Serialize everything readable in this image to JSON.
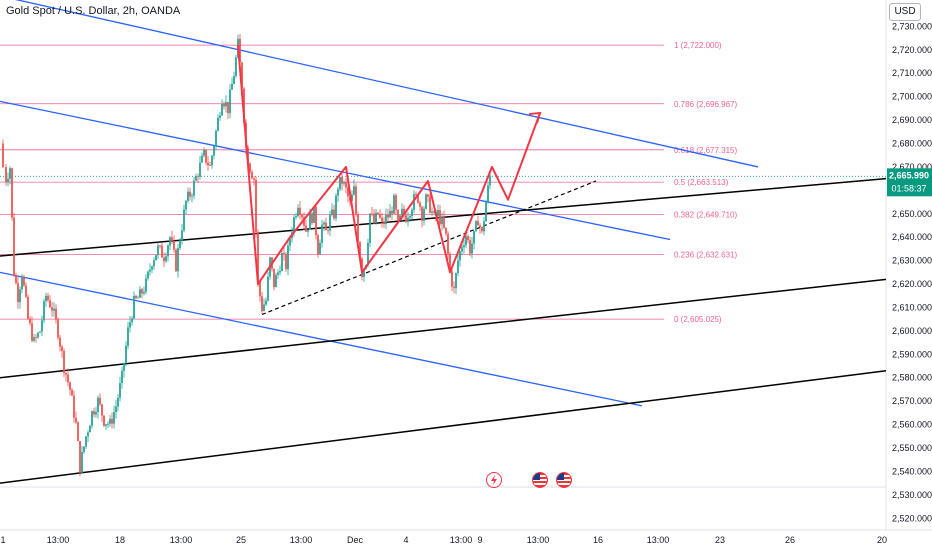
{
  "header": {
    "symbol_title": "Gold Spot / U.S. Dollar, 2h, OANDA",
    "currency": "USD"
  },
  "price_box": {
    "price": "2,665.990",
    "countdown": "01:58:37"
  },
  "colors": {
    "up": "#26a69a",
    "down": "#ef5350",
    "fib": "#f06292",
    "channel_blue": "#2962ff",
    "trend_black": "#000000",
    "projection": "#f23645",
    "price_box": "#089981"
  },
  "chart_data": {
    "type": "candlestick",
    "symbol": "Gold Spot / U.S. Dollar",
    "interval": "2h",
    "ylim": [
      2515,
      2737
    ],
    "yticks": [
      "2,520.000",
      "2,530.000",
      "2,540.000",
      "2,550.000",
      "2,560.000",
      "2,570.000",
      "2,580.000",
      "2,590.000",
      "2,600.000",
      "2,610.000",
      "2,620.000",
      "2,630.000",
      "2,640.000",
      "2,650.000",
      "2,660.000",
      "2,670.000",
      "2,680.000",
      "2,690.000",
      "2,700.000",
      "2,710.000",
      "2,720.000",
      "2,730.000"
    ],
    "xticks": [
      "1",
      "13:00",
      "18",
      "13:00",
      "25",
      "13:00",
      "Dec",
      "4",
      "13:00",
      "9",
      "13:00",
      "16",
      "13:00",
      "23",
      "26",
      "20"
    ],
    "last_price": 2665.99,
    "fib_levels": [
      {
        "label": "1 (2,722.000)",
        "value": 2722.0
      },
      {
        "label": "0.786 (2,696.967)",
        "value": 2696.967
      },
      {
        "label": "0.618 (2,677.315)",
        "value": 2677.315
      },
      {
        "label": "0.5 (2,663.513)",
        "value": 2663.513
      },
      {
        "label": "0.382 (2,649.710)",
        "value": 2649.71
      },
      {
        "label": "0.236 (2,632.631)",
        "value": 2632.631
      },
      {
        "label": "0 (2,605.025)",
        "value": 2605.025
      }
    ],
    "candle_path": [
      [
        0,
        2680
      ],
      [
        3,
        2670
      ],
      [
        6,
        2665
      ],
      [
        10,
        2670
      ],
      [
        14,
        2625
      ],
      [
        18,
        2615
      ],
      [
        22,
        2625
      ],
      [
        28,
        2605
      ],
      [
        34,
        2595
      ],
      [
        40,
        2600
      ],
      [
        46,
        2615
      ],
      [
        52,
        2610
      ],
      [
        58,
        2600
      ],
      [
        64,
        2585
      ],
      [
        70,
        2575
      ],
      [
        76,
        2560
      ],
      [
        80,
        2542
      ],
      [
        86,
        2555
      ],
      [
        92,
        2565
      ],
      [
        98,
        2570
      ],
      [
        104,
        2562
      ],
      [
        110,
        2560
      ],
      [
        116,
        2568
      ],
      [
        122,
        2580
      ],
      [
        128,
        2600
      ],
      [
        134,
        2612
      ],
      [
        140,
        2615
      ],
      [
        146,
        2620
      ],
      [
        152,
        2630
      ],
      [
        158,
        2635
      ],
      [
        164,
        2632
      ],
      [
        170,
        2640
      ],
      [
        176,
        2628
      ],
      [
        180,
        2640
      ],
      [
        186,
        2655
      ],
      [
        192,
        2660
      ],
      [
        198,
        2668
      ],
      [
        204,
        2675
      ],
      [
        210,
        2670
      ],
      [
        216,
        2685
      ],
      [
        222,
        2700
      ],
      [
        228,
        2695
      ],
      [
        234,
        2710
      ],
      [
        238,
        2722
      ],
      [
        242,
        2705
      ],
      [
        246,
        2678
      ],
      [
        250,
        2670
      ],
      [
        254,
        2665
      ],
      [
        258,
        2620
      ],
      [
        262,
        2610
      ],
      [
        266,
        2613
      ],
      [
        270,
        2630
      ],
      [
        274,
        2620
      ],
      [
        278,
        2625
      ],
      [
        282,
        2632
      ],
      [
        286,
        2628
      ],
      [
        290,
        2640
      ],
      [
        294,
        2648
      ],
      [
        298,
        2655
      ],
      [
        302,
        2650
      ],
      [
        306,
        2643
      ],
      [
        310,
        2648
      ],
      [
        314,
        2650
      ],
      [
        318,
        2635
      ],
      [
        322,
        2645
      ],
      [
        326,
        2642
      ],
      [
        330,
        2648
      ],
      [
        334,
        2650
      ],
      [
        338,
        2662
      ],
      [
        342,
        2664
      ],
      [
        346,
        2660
      ],
      [
        350,
        2654
      ],
      [
        354,
        2660
      ],
      [
        358,
        2640
      ],
      [
        362,
        2625
      ],
      [
        366,
        2630
      ],
      [
        370,
        2650
      ],
      [
        374,
        2646
      ],
      [
        378,
        2650
      ],
      [
        382,
        2645
      ],
      [
        386,
        2648
      ],
      [
        390,
        2650
      ],
      [
        394,
        2655
      ],
      [
        398,
        2645
      ],
      [
        402,
        2650
      ],
      [
        406,
        2649
      ],
      [
        410,
        2652
      ],
      [
        414,
        2656
      ],
      [
        418,
        2657
      ],
      [
        422,
        2650
      ],
      [
        426,
        2656
      ],
      [
        430,
        2653
      ],
      [
        434,
        2648
      ],
      [
        438,
        2650
      ],
      [
        442,
        2646
      ],
      [
        446,
        2640
      ],
      [
        450,
        2625
      ],
      [
        454,
        2617
      ],
      [
        458,
        2630
      ],
      [
        462,
        2637
      ],
      [
        466,
        2641
      ],
      [
        470,
        2635
      ],
      [
        474,
        2640
      ],
      [
        478,
        2648
      ],
      [
        482,
        2641
      ],
      [
        486,
        2655
      ],
      [
        490,
        2666
      ]
    ]
  }
}
